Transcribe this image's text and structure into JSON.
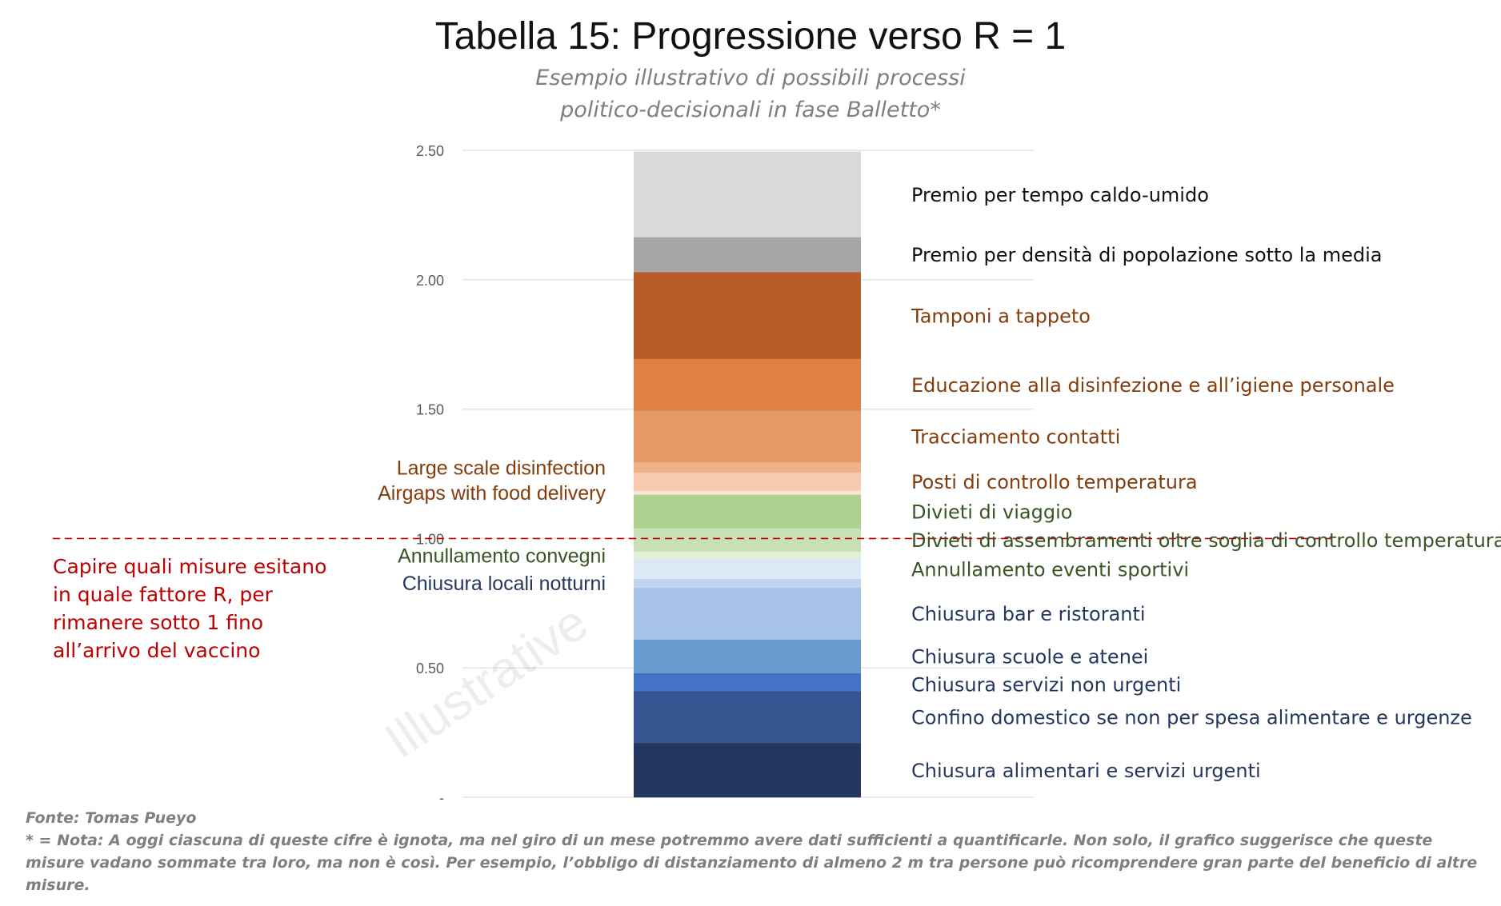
{
  "title": "Tabella 15: Progressione verso R = 1",
  "subtitle_lines": [
    "Esempio illustrativo di possibili processi",
    "politico-decisionali in fase Balletto*"
  ],
  "watermark": "Illustrative",
  "callout": "Capire quali misure esitano in quale fattore R, per rimanere sotto 1 fino all’arrivo del vaccino",
  "source": "Fonte: Tomas Pueyo",
  "footnote": "* = Nota: A oggi ciascuna di queste cifre è ignota, ma nel giro di un mese potremmo avere dati sufficienti a quantificarle. Non solo, il grafico suggerisce che queste misure vadano sommate tra loro, ma non è così. Per esempio, l’obbligo di distanziamento di almeno 2 m tra persone può ricomprendere gran parte del beneficio di altre misure.",
  "chart_data": {
    "type": "bar",
    "stacked": true,
    "ylim": [
      0,
      2.5
    ],
    "yticks": [
      0,
      0.5,
      1.0,
      1.5,
      2.0,
      2.5
    ],
    "ytick_labels": [
      "-",
      "0.50",
      "1.00",
      "1.50",
      "2.00",
      "2.50"
    ],
    "grid": true,
    "reference_line": 1.0,
    "segments": [
      {
        "label": "Chiusura alimentari e servizi urgenti",
        "value": 0.21,
        "color": "#24375f",
        "label_side": "right",
        "label_color": "#24375f"
      },
      {
        "label": "Confino domestico se non per spesa alimentare e urgenze",
        "value": 0.2,
        "color": "#355591",
        "label_side": "right",
        "label_color": "#24375f"
      },
      {
        "label": "Chiusura servizi non urgenti",
        "value": 0.07,
        "color": "#4472c4",
        "label_side": "right",
        "label_color": "#24375f"
      },
      {
        "label": "Chiusura scuole e atenei",
        "value": 0.13,
        "color": "#699bd1",
        "label_side": "right",
        "label_color": "#24375f"
      },
      {
        "label": "Chiusura bar e ristoranti",
        "value": 0.2,
        "color": "#a6c2e6",
        "label_side": "right",
        "label_color": "#24375f"
      },
      {
        "label": "Chiusura locali notturni",
        "value": 0.035,
        "color": "#c0d4ef",
        "label_side": "left",
        "label_color": "#24375f"
      },
      {
        "label": "Annullamento eventi sportivi",
        "value": 0.075,
        "color": "#dde8f6",
        "label_side": "right",
        "label_color": "#375623"
      },
      {
        "label": "Annullamento convegni",
        "value": 0.03,
        "color": "#e2efd9",
        "label_side": "left",
        "label_color": "#375623"
      },
      {
        "label": "Divieti di assembramenti oltre soglia di controllo temperatura",
        "value": 0.09,
        "color": "#c9e0b6",
        "label_side": "right",
        "label_color": "#375623"
      },
      {
        "label": "Divieti di viaggio",
        "value": 0.13,
        "color": "#add18f",
        "label_side": "right",
        "label_color": "#375623"
      },
      {
        "label": "Airgaps with food delivery",
        "value": 0.015,
        "color": "#fbe4d6",
        "label_side": "left",
        "label_color": "#843c0c"
      },
      {
        "label": "Posti di controllo temperatura",
        "value": 0.07,
        "color": "#f7cbad",
        "label_side": "right",
        "label_color": "#843c0c"
      },
      {
        "label": "Large scale disinfection",
        "value": 0.04,
        "color": "#f0b28a",
        "label_side": "left",
        "label_color": "#843c0c"
      },
      {
        "label": "Tracciamento contatti",
        "value": 0.2,
        "color": "#e59a66",
        "label_side": "right",
        "label_color": "#843c0c"
      },
      {
        "label": "Educazione alla disinfezione e all’igiene personale",
        "value": 0.2,
        "color": "#e08143",
        "label_side": "right",
        "label_color": "#843c0c"
      },
      {
        "label": "Tamponi a tappeto",
        "value": 0.335,
        "color": "#b65d29",
        "label_side": "right",
        "label_color": "#843c0c"
      },
      {
        "label": "Premio per densità di popolazione sotto la media",
        "value": 0.135,
        "color": "#a5a5a5",
        "label_side": "right",
        "label_color": "#111111"
      },
      {
        "label": "Premio per tempo caldo-umido",
        "value": 0.33,
        "color": "#d9d9d9",
        "label_side": "right",
        "label_color": "#111111"
      }
    ]
  }
}
